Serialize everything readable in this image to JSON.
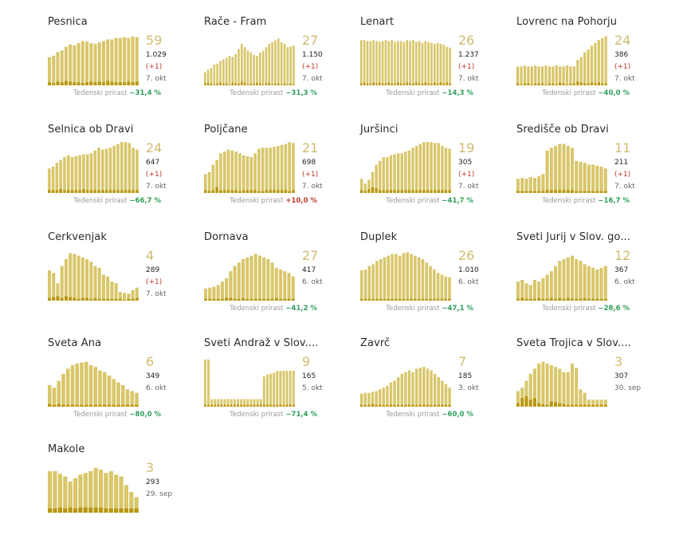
{
  "colors": {
    "bar_light": "#d8c66a",
    "bar_dark": "#b8960e",
    "big_number": "#cfbb6e",
    "delta": "#c0392b",
    "growth_negative": "#2e9e5b",
    "growth_positive": "#c0392b",
    "label_gray": "#9a9a9a"
  },
  "chart_data": [
    {
      "type": "bar",
      "municipality": "Pesnica",
      "active": "59",
      "total": "1.029",
      "delta": "(+1)",
      "date": "7. okt",
      "growth_label": "Tedenski prirast",
      "growth": "−31,4 %",
      "max": 70,
      "values": [
        38,
        40,
        45,
        47,
        52,
        55,
        54,
        57,
        60,
        59,
        57,
        56,
        58,
        60,
        62,
        62,
        64,
        64,
        65,
        64,
        66,
        65
      ],
      "highlight": [
        4,
        3,
        5,
        4,
        6,
        5,
        4,
        4,
        3,
        4,
        5,
        4,
        5,
        4,
        6,
        5,
        4,
        4,
        4,
        5,
        4,
        5
      ]
    },
    {
      "type": "bar",
      "municipality": "Rače - Fram",
      "active": "27",
      "total": "1.150",
      "delta": "(+1)",
      "date": "7. okt",
      "growth_label": "Tedenski prirast",
      "growth": "−31,3 %",
      "max": 60,
      "values": [
        15,
        18,
        20,
        24,
        25,
        28,
        30,
        32,
        34,
        33,
        36,
        42,
        48,
        44,
        40,
        38,
        35,
        34,
        38,
        40,
        44,
        48,
        50,
        52,
        54,
        50,
        48,
        44,
        45,
        46
      ],
      "highlight": [
        2,
        3,
        2,
        1,
        2,
        3,
        2,
        2,
        1,
        3,
        2,
        2,
        4,
        3,
        1,
        2,
        2,
        3,
        2,
        1,
        2,
        3,
        1,
        2,
        2,
        1,
        2,
        1,
        2,
        1
      ]
    },
    {
      "type": "bar",
      "municipality": "Lenart",
      "active": "26",
      "total": "1.237",
      "delta": "(+1)",
      "date": "7. okt",
      "growth_label": "Tedenski prirast",
      "growth": "−14,3 %",
      "max": 55,
      "values": [
        48,
        48,
        47,
        47,
        48,
        47,
        46,
        47,
        48,
        47,
        48,
        46,
        47,
        47,
        46,
        48,
        47,
        48,
        46,
        47,
        45,
        47,
        46,
        45,
        44,
        45,
        44,
        43,
        41,
        40
      ],
      "highlight": [
        2,
        3,
        2,
        2,
        3,
        2,
        3,
        2,
        2,
        3,
        2,
        2,
        3,
        2,
        2,
        3,
        2,
        2,
        3,
        2,
        2,
        3,
        2,
        2,
        3,
        2,
        3,
        2,
        3,
        2
      ]
    },
    {
      "type": "bar",
      "municipality": "Lovrenc na Pohorju",
      "active": "24",
      "total": "386",
      "delta": "(+1)",
      "date": "7. okt",
      "growth_label": "Tedenski prirast",
      "growth": "−40,0 %",
      "max": 55,
      "values": [
        20,
        20,
        21,
        20,
        20,
        21,
        20,
        20,
        21,
        20,
        20,
        21,
        20,
        20,
        21,
        20,
        20,
        27,
        30,
        35,
        38,
        42,
        45,
        48,
        50,
        52
      ],
      "highlight": [
        2,
        1,
        2,
        2,
        1,
        2,
        2,
        2,
        1,
        2,
        2,
        1,
        3,
        2,
        1,
        2,
        2,
        4,
        3,
        2,
        2,
        3,
        2,
        3,
        2,
        2
      ]
    },
    {
      "type": "bar",
      "municipality": "Selnica ob Dravi",
      "active": "24",
      "total": "647",
      "delta": "(+1)",
      "date": "7. okt",
      "growth_label": "Tedenski prirast",
      "growth": "−66,7 %",
      "max": 55,
      "values": [
        26,
        28,
        32,
        35,
        38,
        40,
        38,
        39,
        40,
        41,
        41,
        42,
        45,
        48,
        46,
        47,
        48,
        50,
        52,
        54,
        54,
        53,
        48,
        46
      ],
      "highlight": [
        3,
        3,
        3,
        4,
        3,
        3,
        3,
        3,
        3,
        4,
        3,
        3,
        3,
        3,
        3,
        3,
        3,
        3,
        3,
        3,
        3,
        3,
        3,
        3
      ]
    },
    {
      "type": "bar",
      "municipality": "Poljčane",
      "active": "21",
      "total": "698",
      "delta": "(+10,0 %)",
      "delta_display": "(+1)",
      "date": "7. okt",
      "growth_label": "Tedenski prirast",
      "growth": "+10,0 %",
      "max": 55,
      "values": [
        20,
        22,
        30,
        35,
        42,
        44,
        46,
        45,
        44,
        42,
        40,
        39,
        38,
        42,
        47,
        48,
        48,
        48,
        49,
        50,
        51,
        52,
        54,
        53
      ],
      "highlight": [
        3,
        2,
        3,
        6,
        3,
        3,
        3,
        3,
        3,
        2,
        3,
        3,
        3,
        3,
        2,
        2,
        3,
        3,
        3,
        3,
        3,
        3,
        2,
        3
      ]
    },
    {
      "type": "bar",
      "municipality": "Juršinci",
      "active": "19",
      "total": "305",
      "delta": "(+1)",
      "date": "7. okt",
      "growth_label": "Tedenski prirast",
      "growth": "−41,7 %",
      "max": 55,
      "values": [
        15,
        10,
        14,
        22,
        30,
        34,
        38,
        38,
        40,
        41,
        42,
        42,
        44,
        45,
        48,
        50,
        52,
        54,
        54,
        54,
        53,
        53,
        50,
        48,
        47
      ],
      "highlight": [
        3,
        2,
        4,
        6,
        5,
        3,
        3,
        3,
        3,
        3,
        3,
        3,
        3,
        3,
        3,
        3,
        3,
        3,
        3,
        3,
        3,
        3,
        3,
        3,
        3
      ]
    },
    {
      "type": "bar",
      "municipality": "Središče ob Dravi",
      "active": "11",
      "total": "211",
      "delta": "(+1)",
      "date": "7. okt",
      "growth_label": "Tedenski prirast",
      "growth": "−16,7 %",
      "max": 55,
      "values": [
        15,
        16,
        15,
        17,
        16,
        18,
        20,
        45,
        48,
        50,
        52,
        52,
        50,
        48,
        34,
        33,
        32,
        30,
        30,
        29,
        28,
        26
      ],
      "highlight": [
        2,
        2,
        2,
        2,
        2,
        2,
        2,
        3,
        3,
        3,
        3,
        3,
        3,
        3,
        2,
        2,
        2,
        2,
        2,
        2,
        2,
        2
      ]
    },
    {
      "type": "bar",
      "municipality": "Cerkvenjak",
      "active": "4",
      "total": "289",
      "delta": "(+1)",
      "date": "7. okt",
      "growth_label": "Tedenski prirast",
      "growth": "",
      "max": 60,
      "values": [
        35,
        32,
        20,
        40,
        48,
        55,
        54,
        52,
        50,
        48,
        45,
        40,
        38,
        30,
        28,
        22,
        20,
        10,
        9,
        8,
        12,
        15
      ],
      "highlight": [
        3,
        4,
        5,
        3,
        5,
        4,
        3,
        2,
        3,
        3,
        2,
        3,
        2,
        2,
        2,
        2,
        2,
        2,
        1,
        2,
        2,
        3
      ]
    },
    {
      "type": "bar",
      "municipality": "Dornava",
      "active": "27",
      "total": "417",
      "delta": "",
      "date": "6. okt",
      "growth_label": "Tedenski prirast",
      "growth": "−41,2 %",
      "max": 60,
      "values": [
        14,
        15,
        16,
        18,
        22,
        26,
        34,
        40,
        44,
        48,
        50,
        52,
        54,
        52,
        50,
        48,
        44,
        38,
        36,
        34,
        32,
        28
      ],
      "highlight": [
        2,
        2,
        2,
        2,
        2,
        3,
        3,
        2,
        2,
        3,
        2,
        2,
        2,
        2,
        2,
        2,
        2,
        3,
        2,
        2,
        2,
        2
      ]
    },
    {
      "type": "bar",
      "municipality": "Duplek",
      "active": "26",
      "total": "1.010",
      "delta": "",
      "date": "6. okt",
      "growth_label": "Tedenski prirast",
      "growth": "−47,1 %",
      "max": 60,
      "values": [
        35,
        36,
        40,
        42,
        46,
        48,
        50,
        52,
        54,
        54,
        52,
        55,
        56,
        54,
        52,
        50,
        48,
        44,
        40,
        36,
        32,
        30,
        28,
        27
      ],
      "highlight": [
        2,
        2,
        2,
        2,
        2,
        2,
        2,
        2,
        2,
        2,
        2,
        2,
        2,
        2,
        2,
        2,
        2,
        2,
        2,
        2,
        2,
        2,
        2,
        2
      ]
    },
    {
      "type": "bar",
      "municipality": "Sveti Jurij v Slov. go...",
      "active": "12",
      "total": "367",
      "delta": "",
      "date": "6. okt",
      "growth_label": "Tedenski prirast",
      "growth": "−28,6 %",
      "max": 60,
      "values": [
        22,
        24,
        20,
        18,
        24,
        22,
        26,
        30,
        34,
        40,
        46,
        48,
        50,
        52,
        48,
        46,
        42,
        40,
        38,
        36,
        38,
        40
      ],
      "highlight": [
        2,
        3,
        2,
        2,
        2,
        3,
        2,
        2,
        3,
        2,
        3,
        2,
        3,
        2,
        2,
        2,
        3,
        2,
        2,
        2,
        2,
        2
      ]
    },
    {
      "type": "bar",
      "municipality": "Sveta Ana",
      "active": "6",
      "total": "349",
      "delta": "",
      "date": "6. okt",
      "growth_label": "Tedenski prirast",
      "growth": "−80,0 %",
      "max": 60,
      "values": [
        25,
        22,
        30,
        38,
        44,
        48,
        50,
        51,
        52,
        48,
        46,
        42,
        40,
        36,
        32,
        28,
        25,
        20,
        18,
        16
      ],
      "highlight": [
        3,
        2,
        3,
        2,
        2,
        2,
        2,
        2,
        2,
        2,
        2,
        2,
        2,
        2,
        2,
        2,
        2,
        2,
        2,
        2
      ]
    },
    {
      "type": "bar",
      "municipality": "Sveti Andraž v Slov....",
      "active": "9",
      "total": "165",
      "delta": "",
      "date": "5. okt",
      "growth_label": "Tedenski prirast",
      "growth": "−71,4 %",
      "max": 55,
      "values": [
        50,
        50,
        8,
        8,
        8,
        8,
        8,
        8,
        8,
        8,
        8,
        8,
        8,
        8,
        8,
        8,
        8,
        8,
        32,
        34,
        35,
        36,
        38,
        38,
        38,
        38,
        38,
        38
      ],
      "highlight": [
        2,
        2,
        2,
        2,
        2,
        2,
        2,
        2,
        2,
        2,
        2,
        2,
        2,
        2,
        2,
        2,
        2,
        2,
        2,
        2,
        2,
        2,
        2,
        2,
        2,
        2,
        2,
        2
      ]
    },
    {
      "type": "bar",
      "municipality": "Zavrč",
      "active": "7",
      "total": "185",
      "delta": "",
      "date": "3. okt",
      "growth_label": "Tedenski prirast",
      "growth": "−60,0 %",
      "max": 60,
      "values": [
        15,
        16,
        16,
        17,
        18,
        20,
        22,
        24,
        28,
        30,
        34,
        38,
        40,
        42,
        40,
        44,
        45,
        46,
        44,
        42,
        38,
        34,
        30,
        26,
        22
      ],
      "highlight": [
        2,
        2,
        2,
        3,
        2,
        2,
        2,
        2,
        2,
        2,
        2,
        2,
        2,
        2,
        2,
        2,
        2,
        2,
        2,
        2,
        2,
        2,
        2,
        2,
        2
      ]
    },
    {
      "type": "bar",
      "municipality": "Sveta Trojica v Slov....",
      "active": "3",
      "total": "307",
      "delta": "",
      "date": "30. sep",
      "growth_label": "",
      "growth": "",
      "max": 60,
      "values": [
        18,
        22,
        30,
        38,
        44,
        50,
        52,
        50,
        48,
        46,
        44,
        40,
        40,
        50,
        45,
        20,
        16,
        8,
        8,
        8,
        8,
        8
      ],
      "highlight": [
        4,
        10,
        12,
        8,
        10,
        4,
        3,
        2,
        6,
        5,
        4,
        3,
        2,
        2,
        2,
        2,
        2,
        2,
        2,
        2,
        2,
        2
      ]
    },
    {
      "type": "bar",
      "municipality": "Makole",
      "active": "3",
      "total": "293",
      "delta": "",
      "date": "29. sep",
      "growth_label": "",
      "growth": "",
      "max": 60,
      "values": [
        48,
        48,
        45,
        42,
        36,
        40,
        44,
        46,
        48,
        52,
        50,
        46,
        48,
        44,
        42,
        32,
        24,
        18
      ],
      "highlight": [
        5,
        5,
        6,
        5,
        6,
        5,
        6,
        6,
        6,
        6,
        6,
        5,
        5,
        5,
        5,
        5,
        5,
        5
      ]
    }
  ]
}
